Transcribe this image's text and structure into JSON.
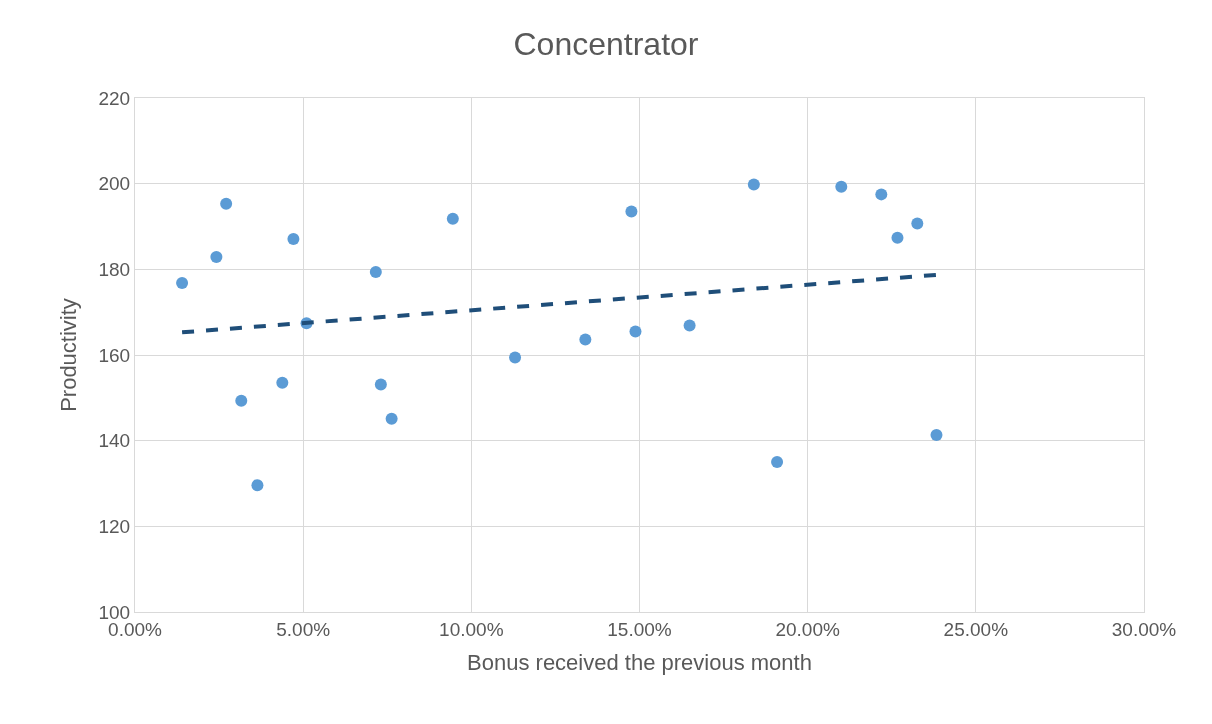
{
  "chart_data": {
    "type": "scatter",
    "title": "Concentrator",
    "xlabel": "Bonus received the previous month",
    "ylabel": "Productivity",
    "series": [
      {
        "color": "#5b9bd5",
        "marker": "circle",
        "x": [
          1.4,
          2.42,
          2.71,
          3.16,
          3.64,
          4.38,
          4.71,
          5.1,
          7.16,
          7.31,
          7.63,
          9.45,
          11.3,
          13.39,
          14.76,
          14.88,
          16.49,
          18.4,
          19.09,
          21.0,
          22.19,
          22.67,
          23.26,
          23.83
        ],
        "values": [
          176.8,
          182.9,
          195.3,
          149.3,
          129.6,
          153.5,
          187.1,
          167.4,
          179.4,
          153.1,
          145.1,
          191.8,
          159.4,
          163.6,
          193.5,
          165.5,
          166.9,
          199.8,
          135.0,
          199.3,
          197.5,
          187.4,
          190.7,
          141.3
        ]
      },
      {
        "type": "line",
        "color": "#1f4e79",
        "line_style": "dashed",
        "marker": "none",
        "x": [
          1.4,
          23.83
        ],
        "values": [
          165.3,
          178.7
        ]
      }
    ],
    "xlim": [
      0,
      30
    ],
    "xticks": [
      {
        "value": 0,
        "label": "0.00%"
      },
      {
        "value": 5,
        "label": "5.00%"
      },
      {
        "value": 10,
        "label": "10.00%"
      },
      {
        "value": 15,
        "label": "15.00%"
      },
      {
        "value": 20,
        "label": "20.00%"
      },
      {
        "value": 25,
        "label": "25.00%"
      },
      {
        "value": 30,
        "label": "30.00%"
      }
    ],
    "ylim": [
      100,
      220
    ],
    "yticks": [
      100,
      120,
      140,
      160,
      180,
      200,
      220
    ],
    "grid": true
  }
}
